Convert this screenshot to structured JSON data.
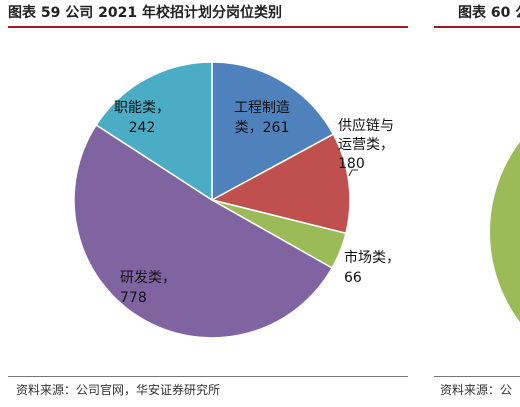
{
  "header": {
    "title": "图表 59 公司 2021 年校招计划分岗位类别",
    "next_title": "图表 60 公司"
  },
  "footer": {
    "source": "资料来源：公司官网，华安证券研究所",
    "next_source": "资料来源：公"
  },
  "chart_data": {
    "type": "pie",
    "title": "图表 59 公司 2021 年校招计划分岗位类别",
    "slices": [
      {
        "name": "工程制造类",
        "value": 261,
        "color": "#4F81BD",
        "label_lines": [
          "工程制造",
          "类，261"
        ]
      },
      {
        "name": "供应链与运营类",
        "value": 180,
        "color": "#C0504D",
        "label_lines": [
          "供应链与",
          "运营类，",
          "180"
        ]
      },
      {
        "name": "市场类",
        "value": 66,
        "color": "#9BBB59",
        "label_lines": [
          "市场类，",
          "66"
        ]
      },
      {
        "name": "研发类",
        "value": 778,
        "color": "#8064A2",
        "label_lines": [
          "研发类，",
          "778"
        ]
      },
      {
        "name": "职能类",
        "value": 242,
        "color": "#4BACC6",
        "label_lines": [
          "职能类，",
          "242"
        ]
      }
    ],
    "start_angle": "12 o'clock",
    "direction": "clockwise",
    "legend": "none"
  },
  "colors": {
    "accent_rule": "#9e1b1b",
    "partial_next_chart": "#9BBB59"
  }
}
